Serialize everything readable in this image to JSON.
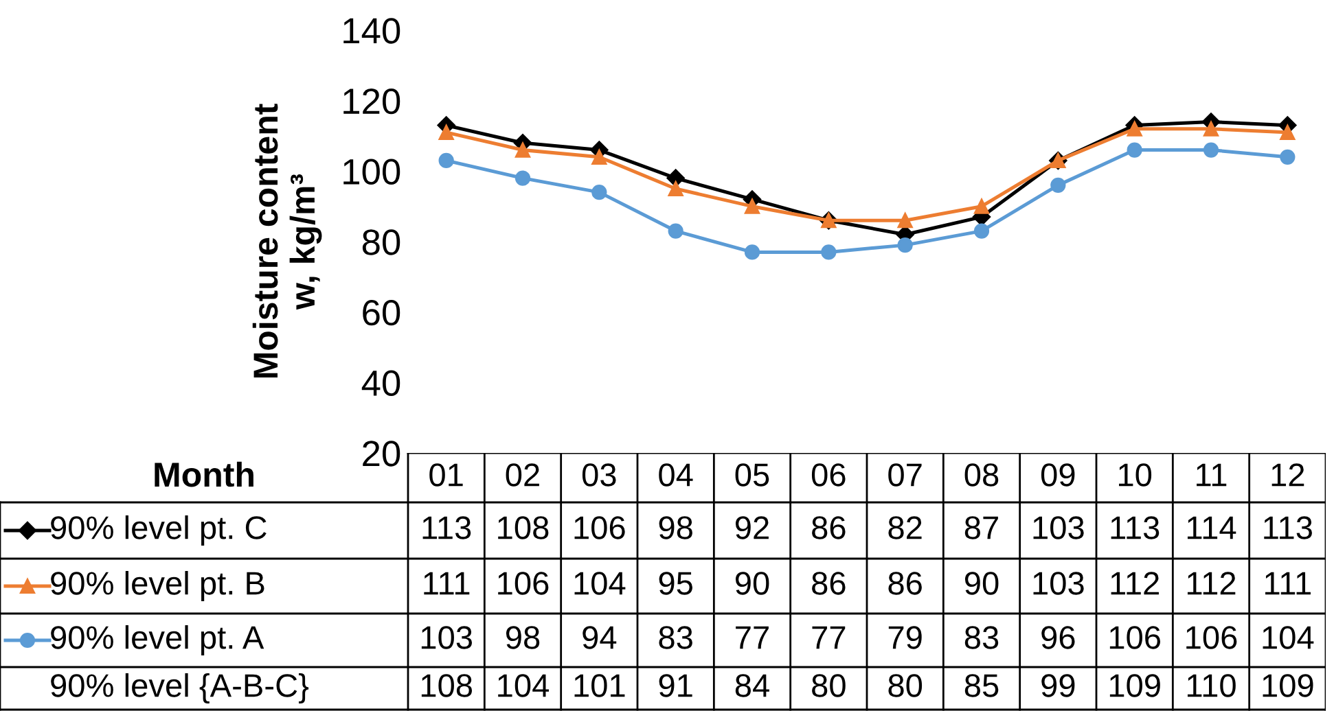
{
  "chart_data": {
    "type": "line",
    "ylabel": "Moisture content\nw, kg/m³",
    "xlabel": "Month",
    "categories": [
      "01",
      "02",
      "03",
      "04",
      "05",
      "06",
      "07",
      "08",
      "09",
      "10",
      "11",
      "12"
    ],
    "ylim": [
      20,
      140
    ],
    "yticks": [
      20,
      40,
      60,
      80,
      100,
      120,
      140
    ],
    "grid": false,
    "legend": "bottom",
    "data_labels": true,
    "series": [
      {
        "name": "90% level pt. C",
        "color": "#000000",
        "marker": "diamond",
        "values": [
          113,
          108,
          106,
          98,
          92,
          86,
          82,
          87,
          103,
          113,
          114,
          113
        ]
      },
      {
        "name": "90% level pt. B",
        "color": "#ed7d31",
        "marker": "triangle",
        "values": [
          111,
          106,
          104,
          95,
          90,
          86,
          86,
          90,
          103,
          112,
          112,
          111
        ]
      },
      {
        "name": "90% level pt. A",
        "color": "#5b9bd5",
        "marker": "circle",
        "values": [
          103,
          98,
          94,
          83,
          77,
          77,
          79,
          83,
          96,
          106,
          106,
          104
        ]
      }
    ],
    "annotations": [
      "90% level {A-B-C}",
      "108",
      "104",
      "101",
      "91",
      "84",
      "80",
      "80",
      "85",
      "99",
      "109",
      "110",
      "109"
    ]
  }
}
